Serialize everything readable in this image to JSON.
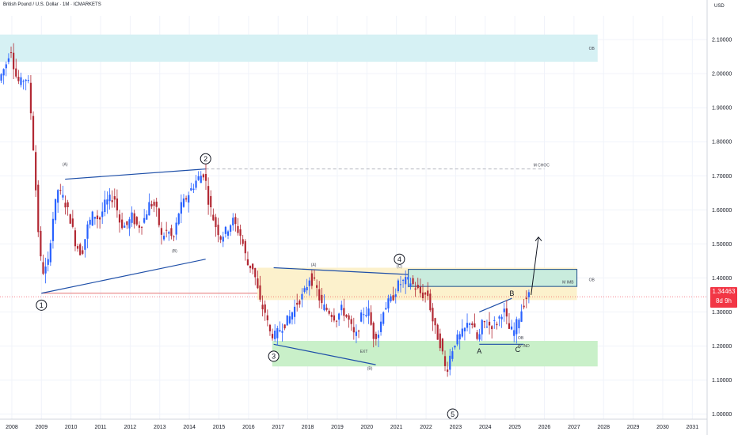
{
  "header": {
    "symbol_line": "British Pound / U.S. Dollar · 1M · ICMARKETS"
  },
  "price_axis": {
    "currency": "USD"
  },
  "last_price": {
    "value": "1.34463",
    "countdown": "8d 9h",
    "color": "#f23645"
  },
  "chart_data": {
    "type": "candlestick",
    "title": "British Pound / U.S. Dollar · 1M · ICMARKETS",
    "xlim": [
      2007.6,
      2031.5
    ],
    "ylim": [
      0.985,
      2.17
    ],
    "grid": true,
    "x_ticks": [
      "2008",
      "2009",
      "2010",
      "2011",
      "2012",
      "2013",
      "2014",
      "2015",
      "2016",
      "2017",
      "2018",
      "2019",
      "2020",
      "2021",
      "2022",
      "2023",
      "2024",
      "2025",
      "2026",
      "2027",
      "2028",
      "2029",
      "2030",
      "2031"
    ],
    "y_ticks": [
      "2.10000",
      "2.00000",
      "1.90000",
      "1.80000",
      "1.70000",
      "1.60000",
      "1.50000",
      "1.40000",
      "1.30000",
      "1.20000",
      "1.10000",
      "1.00000"
    ],
    "colors": {
      "up": "#2962ff",
      "down": "#b22833"
    },
    "price_path": [
      [
        2007.6,
        1.98
      ],
      [
        2007.85,
        2.03
      ],
      [
        2008.0,
        2.08
      ],
      [
        2008.15,
        2.0
      ],
      [
        2008.3,
        1.97
      ],
      [
        2008.5,
        1.99
      ],
      [
        2008.6,
        1.97
      ],
      [
        2008.7,
        1.87
      ],
      [
        2008.8,
        1.74
      ],
      [
        2008.9,
        1.58
      ],
      [
        2009.0,
        1.46
      ],
      [
        2009.1,
        1.42
      ],
      [
        2009.25,
        1.43
      ],
      [
        2009.4,
        1.56
      ],
      [
        2009.6,
        1.66
      ],
      [
        2009.8,
        1.63
      ],
      [
        2010.0,
        1.58
      ],
      [
        2010.2,
        1.5
      ],
      [
        2010.4,
        1.47
      ],
      [
        2010.6,
        1.55
      ],
      [
        2010.8,
        1.59
      ],
      [
        2011.0,
        1.57
      ],
      [
        2011.2,
        1.62
      ],
      [
        2011.5,
        1.64
      ],
      [
        2011.7,
        1.56
      ],
      [
        2011.9,
        1.55
      ],
      [
        2012.1,
        1.58
      ],
      [
        2012.3,
        1.55
      ],
      [
        2012.5,
        1.57
      ],
      [
        2012.7,
        1.62
      ],
      [
        2012.9,
        1.61
      ],
      [
        2013.1,
        1.52
      ],
      [
        2013.3,
        1.54
      ],
      [
        2013.5,
        1.51
      ],
      [
        2013.7,
        1.6
      ],
      [
        2013.9,
        1.63
      ],
      [
        2014.1,
        1.66
      ],
      [
        2014.3,
        1.69
      ],
      [
        2014.55,
        1.71
      ],
      [
        2014.7,
        1.62
      ],
      [
        2014.9,
        1.56
      ],
      [
        2015.1,
        1.52
      ],
      [
        2015.3,
        1.54
      ],
      [
        2015.5,
        1.57
      ],
      [
        2015.8,
        1.52
      ],
      [
        2016.0,
        1.44
      ],
      [
        2016.2,
        1.43
      ],
      [
        2016.45,
        1.32
      ],
      [
        2016.6,
        1.3
      ],
      [
        2016.75,
        1.24
      ],
      [
        2016.95,
        1.23
      ],
      [
        2017.1,
        1.25
      ],
      [
        2017.4,
        1.28
      ],
      [
        2017.7,
        1.33
      ],
      [
        2017.9,
        1.35
      ],
      [
        2018.1,
        1.4
      ],
      [
        2018.3,
        1.38
      ],
      [
        2018.5,
        1.32
      ],
      [
        2018.8,
        1.3
      ],
      [
        2019.0,
        1.28
      ],
      [
        2019.2,
        1.31
      ],
      [
        2019.45,
        1.27
      ],
      [
        2019.65,
        1.22
      ],
      [
        2019.9,
        1.3
      ],
      [
        2020.1,
        1.3
      ],
      [
        2020.25,
        1.23
      ],
      [
        2020.45,
        1.24
      ],
      [
        2020.6,
        1.31
      ],
      [
        2020.9,
        1.34
      ],
      [
        2021.1,
        1.38
      ],
      [
        2021.3,
        1.39
      ],
      [
        2021.5,
        1.39
      ],
      [
        2021.7,
        1.37
      ],
      [
        2021.9,
        1.35
      ],
      [
        2022.1,
        1.35
      ],
      [
        2022.3,
        1.26
      ],
      [
        2022.55,
        1.2
      ],
      [
        2022.72,
        1.12
      ],
      [
        2022.85,
        1.17
      ],
      [
        2023.0,
        1.21
      ],
      [
        2023.3,
        1.24
      ],
      [
        2023.55,
        1.28
      ],
      [
        2023.8,
        1.21
      ],
      [
        2023.95,
        1.27
      ],
      [
        2024.2,
        1.26
      ],
      [
        2024.45,
        1.27
      ],
      [
        2024.65,
        1.31
      ],
      [
        2024.85,
        1.25
      ],
      [
        2025.0,
        1.24
      ],
      [
        2025.2,
        1.29
      ],
      [
        2025.4,
        1.34
      ],
      [
        2025.55,
        1.35
      ]
    ],
    "zones": [
      {
        "label": "OB",
        "x": [
          2007.6,
          2027.8
        ],
        "y": [
          2.035,
          2.115
        ],
        "fill": "#d6f1f4"
      },
      {
        "label": "",
        "x": [
          2016.3,
          2027.1
        ],
        "y": [
          1.335,
          1.43
        ],
        "fill": "#fcf1cc"
      },
      {
        "label": "M IMB",
        "x": [
          2021.4,
          2027.1
        ],
        "y": [
          1.375,
          1.425
        ],
        "fill": "#c9ecdd"
      },
      {
        "label": "",
        "x": [
          2016.8,
          2027.8
        ],
        "y": [
          1.14,
          1.215
        ],
        "fill": "#c9f0c9"
      }
    ],
    "horizontal_lines": [
      {
        "label": "M CHOC",
        "x": [
          2014.55,
          2026.0
        ],
        "y": 1.72,
        "style": "dashed"
      },
      {
        "label": "",
        "x": [
          2009.0,
          2016.3
        ],
        "y": 1.355,
        "style": "solid"
      }
    ],
    "wave_labels": [
      {
        "text": "1",
        "x": 2009.0,
        "y": 1.32,
        "circled": true
      },
      {
        "text": "2",
        "x": 2014.55,
        "y": 1.75,
        "circled": true
      },
      {
        "text": "3",
        "x": 2016.85,
        "y": 1.17,
        "circled": true
      },
      {
        "text": "4",
        "x": 2021.1,
        "y": 1.455,
        "circled": true
      },
      {
        "text": "5",
        "x": 2022.9,
        "y": 1.0,
        "circled": true
      },
      {
        "text": "A",
        "x": 2023.8,
        "y": 1.185,
        "circled": false
      },
      {
        "text": "B",
        "x": 2024.9,
        "y": 1.355,
        "circled": false
      },
      {
        "text": "C",
        "x": 2025.1,
        "y": 1.19,
        "circled": false
      }
    ],
    "small_annotations": [
      {
        "text": "(A)",
        "x": 2009.8,
        "y": 1.73
      },
      {
        "text": "(B)",
        "x": 2013.5,
        "y": 1.475
      },
      {
        "text": "(A)",
        "x": 2018.2,
        "y": 1.435
      },
      {
        "text": "(C)",
        "x": 2021.1,
        "y": 1.43
      },
      {
        "text": "(B)",
        "x": 2020.1,
        "y": 1.13
      },
      {
        "text": "EXT",
        "x": 2019.9,
        "y": 1.18
      },
      {
        "text": "OB",
        "x": 2027.6,
        "y": 2.07
      },
      {
        "text": "OB",
        "x": 2027.6,
        "y": 1.39
      },
      {
        "text": "M IMB",
        "x": 2026.8,
        "y": 1.383
      },
      {
        "text": "M CHOC",
        "x": 2025.9,
        "y": 1.727
      },
      {
        "text": "W IND",
        "x": 2025.3,
        "y": 1.197
      },
      {
        "text": "OB",
        "x": 2025.2,
        "y": 1.22
      }
    ],
    "trendlines": [
      [
        [
          2009.0,
          1.355
        ],
        [
          2014.55,
          1.455
        ]
      ],
      [
        [
          2009.8,
          1.69
        ],
        [
          2014.55,
          1.72
        ]
      ],
      [
        [
          2016.85,
          1.205
        ],
        [
          2020.3,
          1.145
        ]
      ],
      [
        [
          2016.85,
          1.43
        ],
        [
          2021.4,
          1.41
        ]
      ],
      [
        [
          2023.8,
          1.3
        ],
        [
          2024.9,
          1.34
        ]
      ],
      [
        [
          2023.8,
          1.205
        ],
        [
          2025.3,
          1.205
        ]
      ]
    ],
    "projection": [
      [
        2025.55,
        1.35
      ],
      [
        2025.8,
        1.52
      ]
    ],
    "last_price": 1.34463
  }
}
